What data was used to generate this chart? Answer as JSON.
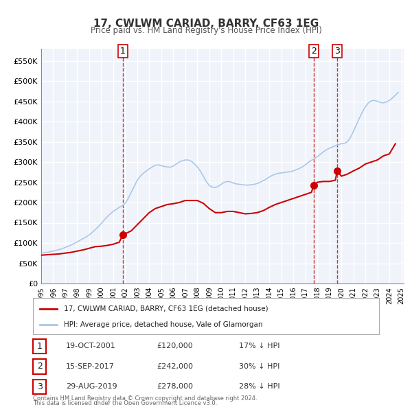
{
  "title": "17, CWLWM CARIAD, BARRY, CF63 1EG",
  "subtitle": "Price paid vs. HM Land Registry's House Price Index (HPI)",
  "legend_line1": "17, CWLWM CARIAD, BARRY, CF63 1EG (detached house)",
  "legend_line2": "HPI: Average price, detached house, Vale of Glamorgan",
  "footer1": "Contains HM Land Registry data © Crown copyright and database right 2024.",
  "footer2": "This data is licensed under the Open Government Licence v3.0.",
  "xlim_start": 1995.0,
  "xlim_end": 2025.2,
  "ylim_min": 0,
  "ylim_max": 580000,
  "ytick_values": [
    0,
    50000,
    100000,
    150000,
    200000,
    250000,
    300000,
    350000,
    400000,
    450000,
    500000,
    550000
  ],
  "ytick_labels": [
    "£0",
    "£50K",
    "£100K",
    "£150K",
    "£200K",
    "£250K",
    "£300K",
    "£350K",
    "£400K",
    "£450K",
    "£500K",
    "£550K"
  ],
  "hpi_color": "#adc6e8",
  "price_color": "#cc0000",
  "marker_color": "#cc0000",
  "vline_color": "#cc0000",
  "bg_color": "#f0f4fa",
  "plot_bg": "#f0f4fa",
  "grid_color": "#ffffff",
  "transactions": [
    {
      "date": 2001.8,
      "price": 120000,
      "label": "1"
    },
    {
      "date": 2017.71,
      "price": 242000,
      "label": "2"
    },
    {
      "date": 2019.66,
      "price": 278000,
      "label": "3"
    }
  ],
  "table_rows": [
    {
      "num": "1",
      "date": "19-OCT-2001",
      "price": "£120,000",
      "hpi": "17% ↓ HPI"
    },
    {
      "num": "2",
      "date": "15-SEP-2017",
      "price": "£242,000",
      "hpi": "30% ↓ HPI"
    },
    {
      "num": "3",
      "date": "29-AUG-2019",
      "price": "£278,000",
      "hpi": "28% ↓ HPI"
    }
  ],
  "hpi_data_x": [
    1995.0,
    1995.25,
    1995.5,
    1995.75,
    1996.0,
    1996.25,
    1996.5,
    1996.75,
    1997.0,
    1997.25,
    1997.5,
    1997.75,
    1998.0,
    1998.25,
    1998.5,
    1998.75,
    1999.0,
    1999.25,
    1999.5,
    1999.75,
    2000.0,
    2000.25,
    2000.5,
    2000.75,
    2001.0,
    2001.25,
    2001.5,
    2001.75,
    2002.0,
    2002.25,
    2002.5,
    2002.75,
    2003.0,
    2003.25,
    2003.5,
    2003.75,
    2004.0,
    2004.25,
    2004.5,
    2004.75,
    2005.0,
    2005.25,
    2005.5,
    2005.75,
    2006.0,
    2006.25,
    2006.5,
    2006.75,
    2007.0,
    2007.25,
    2007.5,
    2007.75,
    2008.0,
    2008.25,
    2008.5,
    2008.75,
    2009.0,
    2009.25,
    2009.5,
    2009.75,
    2010.0,
    2010.25,
    2010.5,
    2010.75,
    2011.0,
    2011.25,
    2011.5,
    2011.75,
    2012.0,
    2012.25,
    2012.5,
    2012.75,
    2013.0,
    2013.25,
    2013.5,
    2013.75,
    2014.0,
    2014.25,
    2014.5,
    2014.75,
    2015.0,
    2015.25,
    2015.5,
    2015.75,
    2016.0,
    2016.25,
    2016.5,
    2016.75,
    2017.0,
    2017.25,
    2017.5,
    2017.75,
    2018.0,
    2018.25,
    2018.5,
    2018.75,
    2019.0,
    2019.25,
    2019.5,
    2019.75,
    2020.0,
    2020.25,
    2020.5,
    2020.75,
    2021.0,
    2021.25,
    2021.5,
    2021.75,
    2022.0,
    2022.25,
    2022.5,
    2022.75,
    2023.0,
    2023.25,
    2023.5,
    2023.75,
    2024.0,
    2024.25,
    2024.5,
    2024.75
  ],
  "hpi_data_y": [
    75000,
    76000,
    77000,
    78500,
    80000,
    82000,
    84000,
    86000,
    89000,
    92000,
    95000,
    99000,
    103000,
    107000,
    111000,
    115000,
    120000,
    126000,
    133000,
    140000,
    148000,
    157000,
    165000,
    172000,
    178000,
    183000,
    188000,
    192000,
    198000,
    210000,
    225000,
    240000,
    255000,
    265000,
    272000,
    278000,
    283000,
    288000,
    292000,
    293000,
    291000,
    289000,
    288000,
    287000,
    290000,
    295000,
    300000,
    303000,
    305000,
    305000,
    302000,
    296000,
    288000,
    278000,
    265000,
    252000,
    242000,
    238000,
    237000,
    240000,
    245000,
    250000,
    252000,
    251000,
    248000,
    246000,
    245000,
    244000,
    243000,
    243000,
    244000,
    245000,
    247000,
    250000,
    254000,
    258000,
    263000,
    267000,
    270000,
    272000,
    273000,
    274000,
    275000,
    276000,
    278000,
    281000,
    284000,
    288000,
    293000,
    299000,
    304000,
    308000,
    313000,
    319000,
    325000,
    330000,
    334000,
    337000,
    340000,
    343000,
    345000,
    346000,
    350000,
    360000,
    375000,
    392000,
    408000,
    423000,
    436000,
    446000,
    451000,
    452000,
    450000,
    447000,
    446000,
    448000,
    452000,
    458000,
    465000,
    472000
  ],
  "price_data_x": [
    1995.0,
    1995.5,
    1996.0,
    1996.5,
    1997.0,
    1997.5,
    1998.0,
    1998.5,
    1999.0,
    1999.5,
    2000.0,
    2000.5,
    2001.0,
    2001.5,
    2001.8,
    2002.5,
    2003.0,
    2003.5,
    2004.0,
    2004.5,
    2005.0,
    2005.5,
    2006.0,
    2006.5,
    2007.0,
    2007.5,
    2008.0,
    2008.5,
    2009.0,
    2009.5,
    2010.0,
    2010.5,
    2011.0,
    2011.5,
    2012.0,
    2012.5,
    2013.0,
    2013.5,
    2014.0,
    2014.5,
    2015.0,
    2015.5,
    2016.0,
    2016.5,
    2017.0,
    2017.5,
    2017.71,
    2018.0,
    2018.5,
    2019.0,
    2019.5,
    2019.66,
    2020.0,
    2020.5,
    2021.0,
    2021.5,
    2022.0,
    2022.5,
    2023.0,
    2023.5,
    2024.0,
    2024.5
  ],
  "price_data_y": [
    70000,
    71000,
    72000,
    73000,
    75000,
    77000,
    80000,
    83000,
    87000,
    91000,
    92000,
    94000,
    97000,
    102000,
    120000,
    130000,
    145000,
    160000,
    175000,
    185000,
    190000,
    195000,
    197000,
    200000,
    205000,
    205000,
    205000,
    198000,
    185000,
    175000,
    175000,
    178000,
    178000,
    175000,
    172000,
    173000,
    175000,
    180000,
    188000,
    195000,
    200000,
    205000,
    210000,
    215000,
    220000,
    225000,
    242000,
    250000,
    252000,
    252000,
    255000,
    278000,
    265000,
    270000,
    278000,
    285000,
    295000,
    300000,
    305000,
    315000,
    320000,
    345000
  ]
}
